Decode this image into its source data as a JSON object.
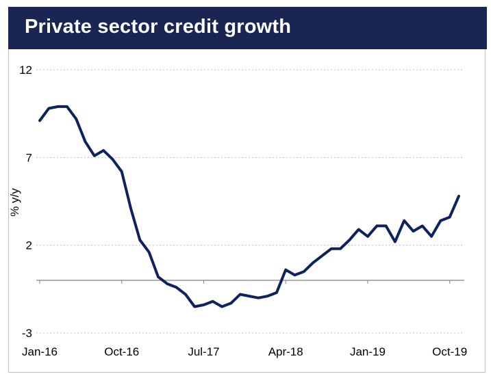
{
  "header": {
    "title": "Private sector credit growth"
  },
  "colors": {
    "banner": "#1b2553",
    "series_line": "#0f2260",
    "gridline": "#bfbfbf",
    "axis": "#808080"
  },
  "chart_data": {
    "type": "line",
    "title": "Private sector credit growth",
    "xlabel": "",
    "ylabel": "% y/y",
    "ylim": [
      -3,
      12
    ],
    "yticks": [
      12,
      7,
      2,
      -3
    ],
    "grid": "horizontal dotted",
    "legend": "none",
    "xtick_labels": [
      "Jan-16",
      "Oct-16",
      "Jul-17",
      "Apr-18",
      "Jan-19",
      "Oct-19"
    ],
    "xtick_positions": [
      0,
      9,
      18,
      27,
      36,
      45
    ],
    "x_count": 47,
    "series": [
      {
        "values": [
          9.1,
          9.8,
          9.9,
          9.9,
          9.2,
          7.9,
          7.1,
          7.4,
          6.9,
          6.2,
          4.1,
          2.3,
          1.6,
          0.2,
          -0.2,
          -0.4,
          -0.8,
          -1.5,
          -1.4,
          -1.2,
          -1.5,
          -1.3,
          -0.8,
          -0.9,
          -1.0,
          -0.9,
          -0.7,
          0.6,
          0.3,
          0.5,
          1.0,
          1.4,
          1.8,
          1.8,
          2.3,
          2.9,
          2.5,
          3.1,
          3.1,
          2.2,
          3.4,
          2.8,
          3.1,
          2.5,
          3.4,
          3.6,
          4.8
        ]
      }
    ]
  }
}
